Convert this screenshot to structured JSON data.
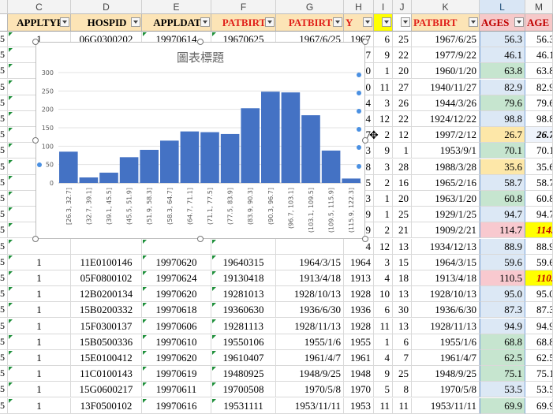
{
  "columns": [
    "C",
    "D",
    "E",
    "F",
    "G",
    "H",
    "I",
    "J",
    "K",
    "L",
    "M"
  ],
  "headers": [
    "APPLTYP",
    "HOSPID",
    "APPLDAT",
    "PATBIRT",
    "PATBIRT",
    "Y",
    "",
    "",
    "PATBIRT",
    "AGES",
    "AGE"
  ],
  "row_number_fragments": [
    "5",
    "5",
    "5",
    "5",
    "5",
    "5",
    "5",
    "5",
    "5",
    "5",
    "5",
    "5",
    "5",
    "5",
    "5",
    "5",
    "5",
    "5",
    "5",
    "5",
    "5",
    "5",
    "5"
  ],
  "rows": [
    {
      "C": "1",
      "D": "06G0300202",
      "E": "19970614",
      "F": "19670625",
      "G": "1967/6/25",
      "H": "1967",
      "I": "6",
      "J": "25",
      "K": "1967/6/25",
      "L": "56.3",
      "M": "56.3"
    },
    {
      "C": "",
      "D": "",
      "E": "",
      "F": "",
      "G": "",
      "H": "7",
      "I": "9",
      "J": "22",
      "K": "1977/9/22",
      "L": "46.1",
      "M": "46.1"
    },
    {
      "C": "",
      "D": "",
      "E": "",
      "F": "",
      "G": "",
      "H": "0",
      "I": "1",
      "J": "20",
      "K": "1960/1/20",
      "L": "63.8",
      "M": "63.8"
    },
    {
      "C": "",
      "D": "",
      "E": "",
      "F": "",
      "G": "",
      "H": "0",
      "I": "11",
      "J": "27",
      "K": "1940/11/27",
      "L": "82.9",
      "M": "82.9"
    },
    {
      "C": "",
      "D": "",
      "E": "",
      "F": "",
      "G": "",
      "H": "4",
      "I": "3",
      "J": "26",
      "K": "1944/3/26",
      "L": "79.6",
      "M": "79.6"
    },
    {
      "C": "",
      "D": "",
      "E": "",
      "F": "",
      "G": "",
      "H": "4",
      "I": "12",
      "J": "22",
      "K": "1924/12/22",
      "L": "98.8",
      "M": "98.8"
    },
    {
      "C": "",
      "D": "",
      "E": "",
      "F": "",
      "G": "",
      "H": "7",
      "I": "2",
      "J": "12",
      "K": "1997/2/12",
      "L": "26.7",
      "M": "26.7"
    },
    {
      "C": "",
      "D": "",
      "E": "",
      "F": "",
      "G": "",
      "H": "3",
      "I": "9",
      "J": "1",
      "K": "1953/9/1",
      "L": "70.1",
      "M": "70.1"
    },
    {
      "C": "",
      "D": "",
      "E": "",
      "F": "",
      "G": "",
      "H": "8",
      "I": "3",
      "J": "28",
      "K": "1988/3/28",
      "L": "35.6",
      "M": "35.6"
    },
    {
      "C": "",
      "D": "",
      "E": "",
      "F": "",
      "G": "",
      "H": "5",
      "I": "2",
      "J": "16",
      "K": "1965/2/16",
      "L": "58.7",
      "M": "58.7"
    },
    {
      "C": "",
      "D": "",
      "E": "",
      "F": "",
      "G": "",
      "H": "3",
      "I": "1",
      "J": "20",
      "K": "1963/1/20",
      "L": "60.8",
      "M": "60.8"
    },
    {
      "C": "",
      "D": "",
      "E": "",
      "F": "",
      "G": "",
      "H": "9",
      "I": "1",
      "J": "25",
      "K": "1929/1/25",
      "L": "94.7",
      "M": "94.7"
    },
    {
      "C": "",
      "D": "",
      "E": "",
      "F": "",
      "G": "",
      "H": "9",
      "I": "2",
      "J": "21",
      "K": "1909/2/21",
      "L": "114.7",
      "M": "114."
    },
    {
      "C": "",
      "D": "",
      "E": "",
      "F": "",
      "G": "",
      "H": "4",
      "I": "12",
      "J": "13",
      "K": "1934/12/13",
      "L": "88.9",
      "M": "88.9"
    },
    {
      "C": "1",
      "D": "11E0100146",
      "E": "19970620",
      "F": "19640315",
      "G": "1964/3/15",
      "H": "1964",
      "I": "3",
      "J": "15",
      "K": "1964/3/15",
      "L": "59.6",
      "M": "59.6"
    },
    {
      "C": "1",
      "D": "05F0800102",
      "E": "19970624",
      "F": "19130418",
      "G": "1913/4/18",
      "H": "1913",
      "I": "4",
      "J": "18",
      "K": "1913/4/18",
      "L": "110.5",
      "M": "110."
    },
    {
      "C": "1",
      "D": "12B0200134",
      "E": "19970620",
      "F": "19281013",
      "G": "1928/10/13",
      "H": "1928",
      "I": "10",
      "J": "13",
      "K": "1928/10/13",
      "L": "95.0",
      "M": "95.0"
    },
    {
      "C": "1",
      "D": "15B0200332",
      "E": "19970618",
      "F": "19360630",
      "G": "1936/6/30",
      "H": "1936",
      "I": "6",
      "J": "30",
      "K": "1936/6/30",
      "L": "87.3",
      "M": "87.3"
    },
    {
      "C": "1",
      "D": "15F0300137",
      "E": "19970606",
      "F": "19281113",
      "G": "1928/11/13",
      "H": "1928",
      "I": "11",
      "J": "13",
      "K": "1928/11/13",
      "L": "94.9",
      "M": "94.9"
    },
    {
      "C": "1",
      "D": "15B0500336",
      "E": "19970610",
      "F": "19550106",
      "G": "1955/1/6",
      "H": "1955",
      "I": "1",
      "J": "6",
      "K": "1955/1/6",
      "L": "68.8",
      "M": "68.8"
    },
    {
      "C": "1",
      "D": "15E0100412",
      "E": "19970620",
      "F": "19610407",
      "G": "1961/4/7",
      "H": "1961",
      "I": "4",
      "J": "7",
      "K": "1961/4/7",
      "L": "62.5",
      "M": "62.5"
    },
    {
      "C": "1",
      "D": "11C0100143",
      "E": "19970619",
      "F": "19480925",
      "G": "1948/9/25",
      "H": "1948",
      "I": "9",
      "J": "25",
      "K": "1948/9/25",
      "L": "75.1",
      "M": "75.1"
    },
    {
      "C": "1",
      "D": "15G0600217",
      "E": "19970611",
      "F": "19700508",
      "G": "1970/5/8",
      "H": "1970",
      "I": "5",
      "J": "8",
      "K": "1970/5/8",
      "L": "53.5",
      "M": "53.5"
    },
    {
      "C": "1",
      "D": "13F0500102",
      "E": "19970616",
      "F": "19531111",
      "G": "1953/11/11",
      "H": "1953",
      "I": "11",
      "J": "11",
      "K": "1953/11/11",
      "L": "69.9",
      "M": "69.9"
    }
  ],
  "age_colors": {
    "green": "#c6e5cf",
    "yellow": "#fde7a8",
    "red": "#f8c9cf",
    "blue": "#dce8f5",
    "accent": "#ffff00"
  },
  "chart_data": {
    "type": "bar",
    "title": "圖表標題",
    "categories": [
      "[26.3, 32.7]",
      "(32.7, 39.1]",
      "(39.1, 45.5]",
      "(45.5, 51.9]",
      "(51.9, 58.3]",
      "(58.3, 64.7]",
      "(64.7, 71.1]",
      "(71.1, 77.5]",
      "(77.5, 83.9]",
      "(83.9, 90.3]",
      "(90.3, 96.7]",
      "(96.7, 103.1]",
      "(103.1, 109.5]",
      "(109.5, 115.9]",
      "(115.9, 122.3]"
    ],
    "values": [
      85,
      15,
      28,
      70,
      90,
      115,
      140,
      138,
      133,
      203,
      248,
      246,
      184,
      88,
      12
    ],
    "yticks": [
      "0",
      "50",
      "100",
      "150",
      "200",
      "250",
      "300"
    ],
    "ylim": [
      0,
      300
    ],
    "bar_color": "#4472c4"
  }
}
